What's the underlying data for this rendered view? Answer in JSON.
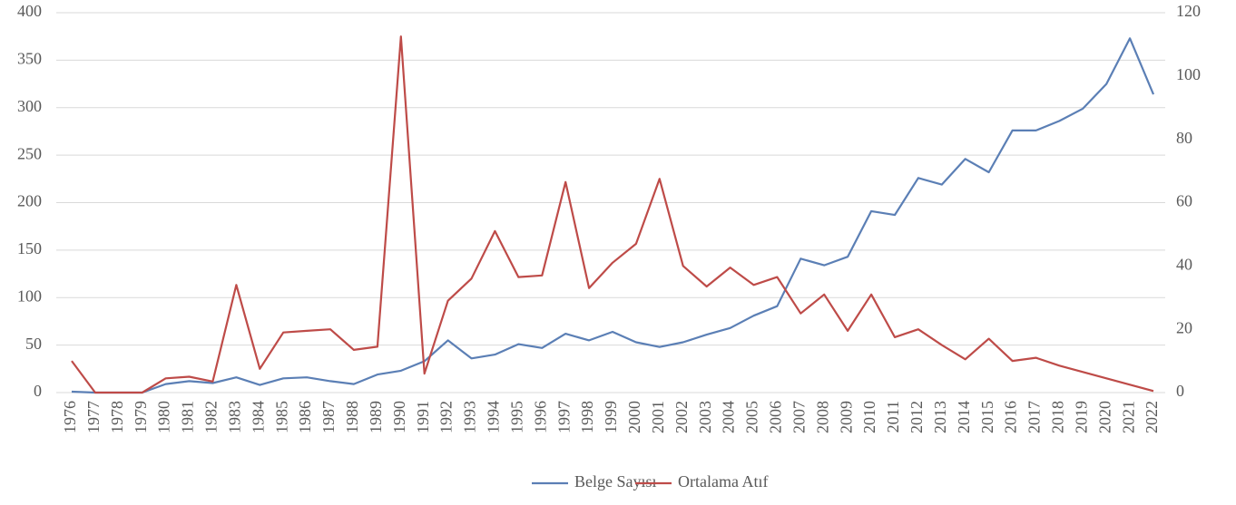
{
  "chart_data": {
    "type": "line",
    "categories": [
      "1976",
      "1977",
      "1978",
      "1979",
      "1980",
      "1981",
      "1982",
      "1983",
      "1984",
      "1985",
      "1986",
      "1987",
      "1988",
      "1989",
      "1990",
      "1991",
      "1992",
      "1993",
      "1994",
      "1995",
      "1996",
      "1997",
      "1998",
      "1999",
      "2000",
      "2001",
      "2002",
      "2003",
      "2004",
      "2005",
      "2006",
      "2007",
      "2008",
      "2009",
      "2010",
      "2011",
      "2012",
      "2013",
      "2014",
      "2015",
      "2016",
      "2017",
      "2018",
      "2019",
      "2020",
      "2021",
      "2022"
    ],
    "series": [
      {
        "name": "Belge Sayısı",
        "color": "#5b7fb5",
        "values": [
          1,
          0,
          0,
          0,
          9,
          12,
          10,
          16,
          8,
          15,
          16,
          12,
          9,
          19,
          23,
          33,
          55,
          36,
          40,
          51,
          47,
          62,
          55,
          64,
          53,
          48,
          53,
          61,
          68,
          81,
          91,
          141,
          134,
          143,
          191,
          187,
          226,
          219,
          246,
          232,
          276,
          276,
          286,
          299,
          325,
          373,
          314
        ]
      },
      {
        "name": "Ortalama Atıf",
        "color": "#be4b48",
        "axis": "y2",
        "values": [
          10,
          0,
          0,
          0,
          4.5,
          5,
          3.5,
          34,
          7.5,
          19,
          19.5,
          20,
          13.5,
          14.5,
          112.5,
          6,
          29,
          36,
          51,
          36.5,
          37,
          66.5,
          33,
          41,
          47,
          67.5,
          40,
          33.5,
          39.5,
          34,
          36.5,
          25,
          31,
          19.5,
          31,
          17.5,
          20,
          15,
          10.5,
          17,
          10,
          11,
          8.5,
          6.5,
          4.5,
          2.5,
          0.5
        ]
      }
    ],
    "ylim": [
      0,
      400
    ],
    "yticks": [
      0,
      50,
      100,
      150,
      200,
      250,
      300,
      350,
      400
    ],
    "y2lim": [
      0,
      120
    ],
    "y2ticks": [
      0,
      20,
      40,
      60,
      80,
      100,
      120
    ],
    "grid": true,
    "legend": "bottom"
  }
}
